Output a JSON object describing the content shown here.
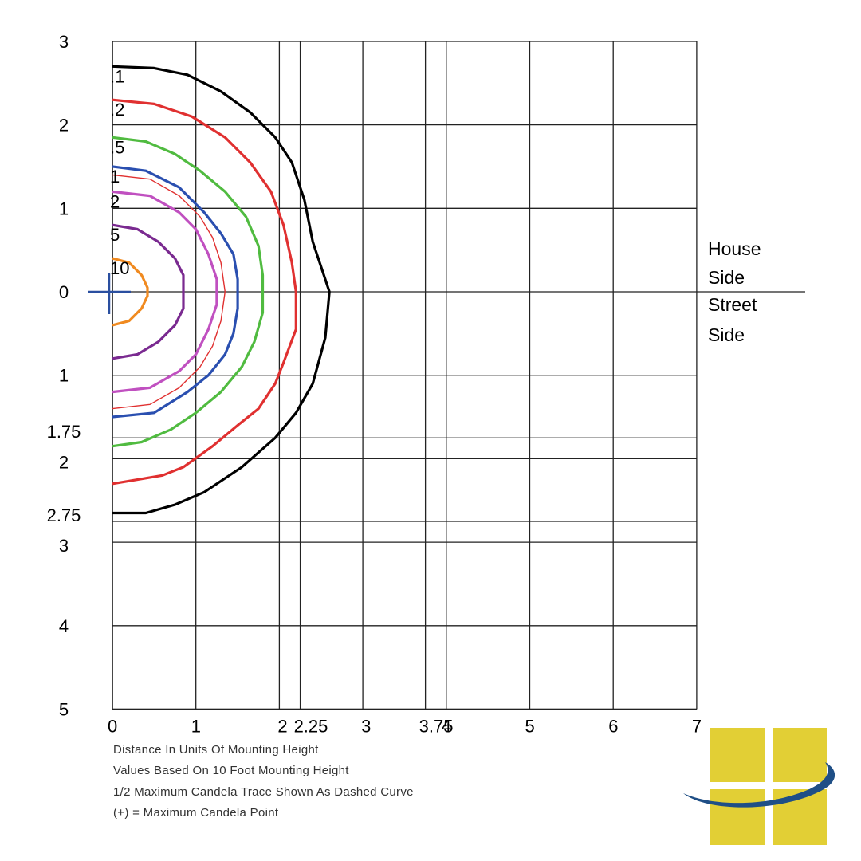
{
  "chart_data": {
    "type": "isofootcandle",
    "x_ticks": [
      "0",
      "1",
      "2",
      "2.25",
      "3",
      "3.75",
      "4",
      "5",
      "6",
      "7"
    ],
    "x_tick_values": [
      0,
      1,
      2,
      2.25,
      3,
      3.75,
      4,
      5,
      6,
      7
    ],
    "y_ticks_house": [
      "0",
      "1",
      "2",
      "3"
    ],
    "y_tick_values_house": [
      0,
      1,
      2,
      3
    ],
    "y_ticks_street": [
      "1",
      "1.75",
      "2",
      "2.75",
      "3",
      "4",
      "5"
    ],
    "y_tick_values_street": [
      1,
      1.75,
      2,
      2.75,
      3,
      4,
      5
    ],
    "xlim": [
      0,
      7
    ],
    "ylim_house": [
      0,
      3
    ],
    "ylim_street": [
      0,
      5
    ],
    "grid": true,
    "side_labels": {
      "house": [
        "House",
        "Side"
      ],
      "street": [
        "Street",
        "Side"
      ]
    },
    "max_candela_point": {
      "x": 0,
      "y": 0
    },
    "contours": [
      {
        "name": ".1",
        "color": "#000000",
        "label": ".1",
        "points": [
          [
            0,
            2.7
          ],
          [
            0.5,
            2.68
          ],
          [
            0.9,
            2.6
          ],
          [
            1.3,
            2.4
          ],
          [
            1.65,
            2.15
          ],
          [
            1.95,
            1.85
          ],
          [
            2.15,
            1.55
          ],
          [
            2.3,
            1.1
          ],
          [
            2.4,
            0.6
          ],
          [
            2.6,
            0
          ],
          [
            2.55,
            -0.55
          ],
          [
            2.4,
            -1.1
          ],
          [
            2.2,
            -1.45
          ],
          [
            1.95,
            -1.75
          ],
          [
            1.55,
            -2.1
          ],
          [
            1.1,
            -2.4
          ],
          [
            0.75,
            -2.55
          ],
          [
            0.4,
            -2.65
          ],
          [
            0,
            -2.65
          ]
        ]
      },
      {
        "name": ".2",
        "color": "#e03030",
        "label": ".2",
        "points": [
          [
            0,
            2.3
          ],
          [
            0.5,
            2.25
          ],
          [
            0.95,
            2.1
          ],
          [
            1.35,
            1.85
          ],
          [
            1.65,
            1.55
          ],
          [
            1.9,
            1.2
          ],
          [
            2.05,
            0.8
          ],
          [
            2.15,
            0.35
          ],
          [
            2.2,
            0
          ],
          [
            2.2,
            -0.45
          ],
          [
            2.05,
            -0.85
          ],
          [
            1.95,
            -1.1
          ],
          [
            1.75,
            -1.4
          ],
          [
            1.5,
            -1.6
          ],
          [
            1.2,
            -1.85
          ],
          [
            0.85,
            -2.1
          ],
          [
            0.6,
            -2.2
          ],
          [
            0,
            -2.3
          ]
        ]
      },
      {
        "name": ".5",
        "color": "#50bb40",
        "label": ".5",
        "points": [
          [
            0,
            1.85
          ],
          [
            0.4,
            1.8
          ],
          [
            0.75,
            1.65
          ],
          [
            1.05,
            1.45
          ],
          [
            1.35,
            1.2
          ],
          [
            1.6,
            0.9
          ],
          [
            1.75,
            0.55
          ],
          [
            1.8,
            0.2
          ],
          [
            1.8,
            0
          ],
          [
            1.8,
            -0.25
          ],
          [
            1.7,
            -0.6
          ],
          [
            1.55,
            -0.9
          ],
          [
            1.3,
            -1.2
          ],
          [
            1,
            -1.45
          ],
          [
            0.7,
            -1.65
          ],
          [
            0.35,
            -1.8
          ],
          [
            0,
            -1.85
          ]
        ]
      },
      {
        "name": "1",
        "color": "#2a4fb0",
        "label": "1",
        "points": [
          [
            0,
            1.5
          ],
          [
            0.4,
            1.45
          ],
          [
            0.8,
            1.25
          ],
          [
            1.1,
            0.95
          ],
          [
            1.3,
            0.7
          ],
          [
            1.45,
            0.45
          ],
          [
            1.5,
            0.15
          ],
          [
            1.5,
            0
          ],
          [
            1.5,
            -0.2
          ],
          [
            1.45,
            -0.5
          ],
          [
            1.35,
            -0.75
          ],
          [
            1.15,
            -1
          ],
          [
            0.9,
            -1.2
          ],
          [
            0.5,
            -1.45
          ],
          [
            0,
            -1.5
          ]
        ]
      },
      {
        "name": "1/2 Max Candela",
        "color": "#e03030",
        "label": "",
        "dashed": true,
        "points": [
          [
            0,
            1.4
          ],
          [
            0.45,
            1.35
          ],
          [
            0.8,
            1.15
          ],
          [
            1.05,
            0.9
          ],
          [
            1.2,
            0.65
          ],
          [
            1.3,
            0.35
          ],
          [
            1.35,
            0
          ],
          [
            1.3,
            -0.35
          ],
          [
            1.2,
            -0.65
          ],
          [
            1.05,
            -0.9
          ],
          [
            0.8,
            -1.15
          ],
          [
            0.45,
            -1.35
          ],
          [
            0,
            -1.4
          ]
        ]
      },
      {
        "name": "2",
        "color": "#c050c0",
        "label": "2",
        "points": [
          [
            0,
            1.2
          ],
          [
            0.45,
            1.15
          ],
          [
            0.8,
            0.95
          ],
          [
            1,
            0.75
          ],
          [
            1.15,
            0.45
          ],
          [
            1.25,
            0.15
          ],
          [
            1.25,
            0
          ],
          [
            1.25,
            -0.15
          ],
          [
            1.15,
            -0.45
          ],
          [
            1,
            -0.75
          ],
          [
            0.8,
            -0.95
          ],
          [
            0.45,
            -1.15
          ],
          [
            0,
            -1.2
          ]
        ]
      },
      {
        "name": "5",
        "color": "#7a2a90",
        "label": "5",
        "points": [
          [
            0,
            0.8
          ],
          [
            0.3,
            0.75
          ],
          [
            0.55,
            0.6
          ],
          [
            0.75,
            0.4
          ],
          [
            0.85,
            0.2
          ],
          [
            0.85,
            0
          ],
          [
            0.85,
            -0.2
          ],
          [
            0.75,
            -0.4
          ],
          [
            0.55,
            -0.6
          ],
          [
            0.3,
            -0.75
          ],
          [
            0,
            -0.8
          ]
        ]
      },
      {
        "name": "10",
        "color": "#f08a20",
        "label": "10",
        "points": [
          [
            0,
            0.4
          ],
          [
            0.2,
            0.35
          ],
          [
            0.35,
            0.2
          ],
          [
            0.42,
            0.05
          ],
          [
            0.42,
            0
          ],
          [
            0.42,
            -0.05
          ],
          [
            0.35,
            -0.2
          ],
          [
            0.2,
            -0.35
          ],
          [
            0,
            -0.4
          ]
        ]
      }
    ]
  },
  "notes": [
    "Distance In Units Of Mounting Height",
    "Values Based On 10 Foot Mounting Height",
    "1/2 Maximum Candela Trace Shown As Dashed Curve",
    "(+) = Maximum Candela Point"
  ],
  "colors": {
    "logo_yellow": "#e2cf35",
    "logo_blue": "#1f4f86"
  },
  "logo": {
    "icon": "window-swoosh-logo"
  }
}
